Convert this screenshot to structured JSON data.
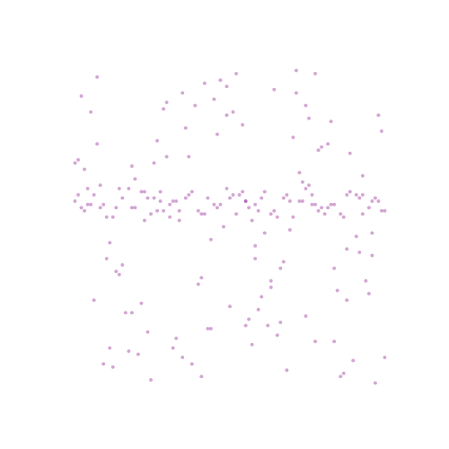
{
  "chart_data": {
    "type": "scatter",
    "color": "#800080",
    "marker": "circle",
    "tick_labels": false,
    "grid": false,
    "xlim": [
      0,
      1
    ],
    "ylim": [
      0,
      1
    ],
    "xticks": [],
    "yticks": [],
    "x": [
      0.03,
      0.12,
      0.27,
      0.41,
      0.55,
      0.68,
      0.82,
      0.95,
      0.07,
      0.19,
      0.33,
      0.47,
      0.61,
      0.74,
      0.88,
      0.99,
      0.05,
      0.16,
      0.29,
      0.43,
      0.58,
      0.71,
      0.84,
      0.92,
      0.1,
      0.23,
      0.36,
      0.5,
      0.64,
      0.77,
      0.9,
      0.02,
      0.14,
      0.25,
      0.39,
      0.53,
      0.66,
      0.79,
      0.93,
      0.08,
      0.21,
      0.34,
      0.46,
      0.6,
      0.73,
      0.86,
      0.97,
      0.11,
      0.24,
      0.37,
      0.49,
      0.63,
      0.76,
      0.89,
      0.04,
      0.17,
      0.3,
      0.44,
      0.57,
      0.7,
      0.83,
      0.96,
      0.09,
      0.22,
      0.35,
      0.48,
      0.62,
      0.75,
      0.87,
      0.01,
      0.13,
      0.26,
      0.4,
      0.52,
      0.65,
      0.78,
      0.91,
      0.06,
      0.18,
      0.31,
      0.45,
      0.59,
      0.72,
      0.85,
      0.98,
      0.15,
      0.28,
      0.42,
      0.56,
      0.69,
      0.81,
      0.94,
      0.2,
      0.32,
      0.51,
      0.67,
      0.8,
      0.38,
      0.54,
      0.87,
      0.12,
      0.44,
      0.71,
      0.26,
      0.63,
      0.92,
      0.35,
      0.08,
      0.58,
      0.77,
      0.19,
      0.49,
      0.83,
      0.03,
      0.66,
      0.3,
      0.95,
      0.41,
      0.74,
      0.55,
      0.01,
      0.04,
      0.07,
      0.1,
      0.13,
      0.16,
      0.19,
      0.22,
      0.25,
      0.28,
      0.31,
      0.34,
      0.37,
      0.4,
      0.43,
      0.46,
      0.49,
      0.52,
      0.55,
      0.58,
      0.61,
      0.64,
      0.67,
      0.7,
      0.73,
      0.76,
      0.79,
      0.82,
      0.85,
      0.88,
      0.91,
      0.94,
      0.97,
      0.99,
      0.02,
      0.06,
      0.11,
      0.15,
      0.2,
      0.24,
      0.29,
      0.33,
      0.38,
      0.42,
      0.47,
      0.51,
      0.56,
      0.6,
      0.65,
      0.69,
      0.74,
      0.78,
      0.83,
      0.87,
      0.92,
      0.96,
      0.05,
      0.14,
      0.23,
      0.32,
      0.41,
      0.5,
      0.59,
      0.68,
      0.77,
      0.86,
      0.95,
      0.09,
      0.18,
      0.27,
      0.36,
      0.45,
      0.54,
      0.63,
      0.72,
      0.81,
      0.9,
      0.98,
      0.57,
      0.75
    ],
    "values": [
      0.91,
      0.12,
      0.77,
      0.34,
      0.58,
      0.05,
      0.83,
      0.41,
      0.27,
      0.69,
      0.15,
      0.96,
      0.48,
      0.22,
      0.73,
      0.09,
      0.62,
      0.38,
      0.87,
      0.18,
      0.44,
      0.99,
      0.3,
      0.66,
      0.07,
      0.52,
      0.81,
      0.25,
      0.93,
      0.14,
      0.47,
      0.71,
      0.36,
      0.02,
      0.88,
      0.6,
      0.2,
      0.75,
      0.33,
      0.97,
      0.1,
      0.55,
      0.79,
      0.28,
      0.64,
      0.04,
      0.85,
      0.4,
      0.17,
      0.72,
      0.94,
      0.31,
      0.57,
      0.08,
      0.68,
      0.23,
      0.89,
      0.46,
      0.13,
      0.78,
      0.37,
      0.01,
      0.63,
      0.26,
      0.92,
      0.5,
      0.19,
      0.84,
      0.43,
      0.7,
      0.06,
      0.59,
      0.32,
      0.98,
      0.16,
      0.74,
      0.42,
      0.86,
      0.11,
      0.53,
      0.9,
      0.24,
      0.67,
      0.03,
      0.8,
      0.35,
      0.61,
      0.95,
      0.21,
      0.49,
      0.76,
      0.29,
      0.65,
      0.12,
      0.86,
      0.39,
      0.54,
      0.07,
      0.82,
      0.27,
      0.45,
      0.18,
      0.92,
      0.7,
      0.33,
      0.6,
      0.09,
      0.76,
      0.4,
      0.98,
      0.23,
      0.85,
      0.14,
      0.56,
      0.37,
      0.72,
      0.48,
      0.03,
      0.88,
      0.19,
      0.58,
      0.55,
      0.6,
      0.57,
      0.53,
      0.59,
      0.56,
      0.61,
      0.54,
      0.58,
      0.57,
      0.52,
      0.6,
      0.55,
      0.59,
      0.56,
      0.62,
      0.54,
      0.58,
      0.57,
      0.61,
      0.55,
      0.59,
      0.53,
      0.58,
      0.6,
      0.56,
      0.57,
      0.54,
      0.61,
      0.59,
      0.56,
      0.58,
      0.55,
      0.6,
      0.57,
      0.53,
      0.62,
      0.56,
      0.59,
      0.55,
      0.58,
      0.61,
      0.54,
      0.57,
      0.6,
      0.56,
      0.59,
      0.53,
      0.58,
      0.62,
      0.55,
      0.57,
      0.6,
      0.54,
      0.59,
      0.57,
      0.56,
      0.61,
      0.58,
      0.54,
      0.59,
      0.55,
      0.6,
      0.57,
      0.53,
      0.58,
      0.56,
      0.62,
      0.55,
      0.59,
      0.57,
      0.61,
      0.54,
      0.58,
      0.56,
      0.6,
      0.55,
      0.52,
      0.63
    ]
  }
}
